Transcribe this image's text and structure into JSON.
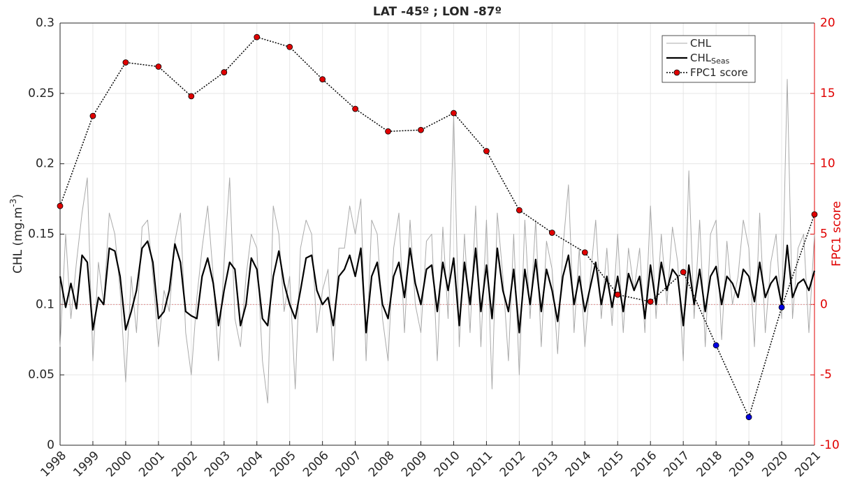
{
  "chart_data": {
    "type": "line",
    "title": "LAT -45º ; LON -87º",
    "ylabel": [
      "CHL (mg.m",
      "-3",
      ")"
    ],
    "y2label": "FPC1 score",
    "xlim": [
      1998,
      2021
    ],
    "xticks": [
      1998,
      1999,
      2000,
      2001,
      2002,
      2003,
      2004,
      2005,
      2006,
      2007,
      2008,
      2009,
      2010,
      2011,
      2012,
      2013,
      2014,
      2015,
      2016,
      2017,
      2018,
      2019,
      2020,
      2021
    ],
    "ylim": [
      0,
      0.3
    ],
    "yticks": [
      0,
      0.05,
      0.1,
      0.15,
      0.2,
      0.25,
      0.3
    ],
    "y2lim": [
      -10,
      20
    ],
    "y2ticks": [
      -10,
      -5,
      0,
      5,
      10,
      15,
      20
    ],
    "grid": true,
    "legend": "upper right",
    "x": [
      1998,
      1998.17,
      1998.33,
      1998.5,
      1998.67,
      1998.83,
      1999,
      1999.17,
      1999.33,
      1999.5,
      1999.67,
      1999.83,
      2000,
      2000.17,
      2000.33,
      2000.5,
      2000.67,
      2000.83,
      2001,
      2001.17,
      2001.33,
      2001.5,
      2001.67,
      2001.83,
      2002,
      2002.17,
      2002.33,
      2002.5,
      2002.67,
      2002.83,
      2003,
      2003.17,
      2003.33,
      2003.5,
      2003.67,
      2003.83,
      2004,
      2004.17,
      2004.33,
      2004.5,
      2004.67,
      2004.83,
      2005,
      2005.17,
      2005.33,
      2005.5,
      2005.67,
      2005.83,
      2006,
      2006.17,
      2006.33,
      2006.5,
      2006.67,
      2006.83,
      2007,
      2007.17,
      2007.33,
      2007.5,
      2007.67,
      2007.83,
      2008,
      2008.17,
      2008.33,
      2008.5,
      2008.67,
      2008.83,
      2009,
      2009.17,
      2009.33,
      2009.5,
      2009.67,
      2009.83,
      2010,
      2010.17,
      2010.33,
      2010.5,
      2010.67,
      2010.83,
      2011,
      2011.17,
      2011.33,
      2011.5,
      2011.67,
      2011.83,
      2012,
      2012.17,
      2012.33,
      2012.5,
      2012.67,
      2012.83,
      2013,
      2013.17,
      2013.33,
      2013.5,
      2013.67,
      2013.83,
      2014,
      2014.17,
      2014.33,
      2014.5,
      2014.67,
      2014.83,
      2015,
      2015.17,
      2015.33,
      2015.5,
      2015.67,
      2015.83,
      2016,
      2016.17,
      2016.33,
      2016.5,
      2016.67,
      2016.83,
      2017,
      2017.17,
      2017.33,
      2017.5,
      2017.67,
      2017.83,
      2018,
      2018.17,
      2018.33,
      2018.5,
      2018.67,
      2018.83,
      2019,
      2019.17,
      2019.33,
      2019.5,
      2019.67,
      2019.83,
      2020,
      2020.17,
      2020.33,
      2020.5,
      2020.67,
      2020.83,
      2021
    ],
    "series": [
      {
        "name": [
          "CHL"
        ],
        "color": "#aaaaaa",
        "width": 1,
        "values": [
          0.07,
          0.15,
          0.09,
          0.13,
          0.165,
          0.19,
          0.06,
          0.13,
          0.1,
          0.165,
          0.15,
          0.11,
          0.045,
          0.12,
          0.08,
          0.155,
          0.16,
          0.12,
          0.07,
          0.11,
          0.095,
          0.145,
          0.165,
          0.08,
          0.05,
          0.105,
          0.14,
          0.17,
          0.12,
          0.06,
          0.13,
          0.19,
          0.09,
          0.07,
          0.12,
          0.15,
          0.14,
          0.06,
          0.03,
          0.17,
          0.15,
          0.095,
          0.12,
          0.04,
          0.14,
          0.16,
          0.15,
          0.08,
          0.11,
          0.125,
          0.06,
          0.14,
          0.14,
          0.17,
          0.15,
          0.175,
          0.06,
          0.16,
          0.15,
          0.09,
          0.06,
          0.14,
          0.165,
          0.08,
          0.16,
          0.1,
          0.08,
          0.145,
          0.15,
          0.06,
          0.155,
          0.09,
          0.235,
          0.07,
          0.15,
          0.08,
          0.17,
          0.07,
          0.16,
          0.04,
          0.165,
          0.12,
          0.06,
          0.15,
          0.05,
          0.16,
          0.09,
          0.16,
          0.07,
          0.145,
          0.125,
          0.065,
          0.14,
          0.185,
          0.08,
          0.14,
          0.07,
          0.12,
          0.16,
          0.09,
          0.14,
          0.085,
          0.15,
          0.08,
          0.14,
          0.11,
          0.14,
          0.08,
          0.17,
          0.09,
          0.15,
          0.1,
          0.155,
          0.13,
          0.06,
          0.195,
          0.09,
          0.16,
          0.07,
          0.15,
          0.16,
          0.075,
          0.145,
          0.1,
          0.12,
          0.16,
          0.14,
          0.07,
          0.165,
          0.08,
          0.13,
          0.15,
          0.09,
          0.26,
          0.09,
          0.14,
          0.15,
          0.08,
          0.15
        ]
      },
      {
        "name": [
          "CHL",
          "Seas"
        ],
        "color": "#000000",
        "width": 2.2,
        "values": [
          0.12,
          0.098,
          0.115,
          0.097,
          0.135,
          0.13,
          0.082,
          0.105,
          0.1,
          0.14,
          0.138,
          0.12,
          0.082,
          0.095,
          0.11,
          0.14,
          0.145,
          0.13,
          0.09,
          0.095,
          0.11,
          0.143,
          0.13,
          0.095,
          0.092,
          0.09,
          0.12,
          0.133,
          0.115,
          0.085,
          0.11,
          0.13,
          0.125,
          0.085,
          0.1,
          0.133,
          0.125,
          0.09,
          0.085,
          0.12,
          0.138,
          0.115,
          0.1,
          0.09,
          0.11,
          0.133,
          0.135,
          0.11,
          0.1,
          0.105,
          0.085,
          0.12,
          0.125,
          0.135,
          0.12,
          0.14,
          0.08,
          0.12,
          0.13,
          0.1,
          0.09,
          0.12,
          0.13,
          0.105,
          0.14,
          0.115,
          0.1,
          0.125,
          0.128,
          0.095,
          0.13,
          0.11,
          0.133,
          0.085,
          0.13,
          0.1,
          0.14,
          0.095,
          0.128,
          0.09,
          0.14,
          0.11,
          0.095,
          0.125,
          0.08,
          0.125,
          0.1,
          0.132,
          0.095,
          0.125,
          0.11,
          0.088,
          0.12,
          0.135,
          0.1,
          0.12,
          0.095,
          0.113,
          0.13,
          0.1,
          0.12,
          0.098,
          0.12,
          0.095,
          0.122,
          0.11,
          0.12,
          0.09,
          0.128,
          0.1,
          0.13,
          0.11,
          0.125,
          0.12,
          0.085,
          0.128,
          0.1,
          0.125,
          0.095,
          0.12,
          0.127,
          0.1,
          0.12,
          0.115,
          0.105,
          0.125,
          0.12,
          0.102,
          0.13,
          0.105,
          0.115,
          0.12,
          0.1,
          0.142,
          0.105,
          0.115,
          0.118,
          0.11,
          0.124
        ]
      },
      {
        "name": [
          "FPC1 score"
        ],
        "color": "#000000",
        "width": 1.5,
        "dash": "2,2",
        "axis": "y2",
        "x": [
          1998,
          1999,
          2000,
          2001,
          2002,
          2003,
          2004,
          2005,
          2006,
          2007,
          2008,
          2009,
          2010,
          2011,
          2012,
          2013,
          2014,
          2015,
          2016,
          2017,
          2018,
          2019,
          2020,
          2021
        ],
        "values": [
          7.0,
          13.4,
          17.2,
          16.9,
          14.8,
          16.5,
          19.0,
          18.3,
          16.0,
          13.9,
          12.3,
          12.4,
          13.6,
          10.9,
          6.7,
          5.1,
          3.7,
          0.7,
          0.2,
          2.3,
          -2.9,
          -8.0,
          -0.2,
          6.4
        ],
        "marker_colors": [
          "#e00000",
          "#e00000",
          "#e00000",
          "#e00000",
          "#e00000",
          "#e00000",
          "#e00000",
          "#e00000",
          "#e00000",
          "#e00000",
          "#e00000",
          "#e00000",
          "#e00000",
          "#e00000",
          "#e00000",
          "#e00000",
          "#e00000",
          "#e00000",
          "#e00000",
          "#e00000",
          "#0000e0",
          "#0000e0",
          "#0000e0",
          "#e00000"
        ]
      }
    ],
    "y2color": "#e00000"
  }
}
